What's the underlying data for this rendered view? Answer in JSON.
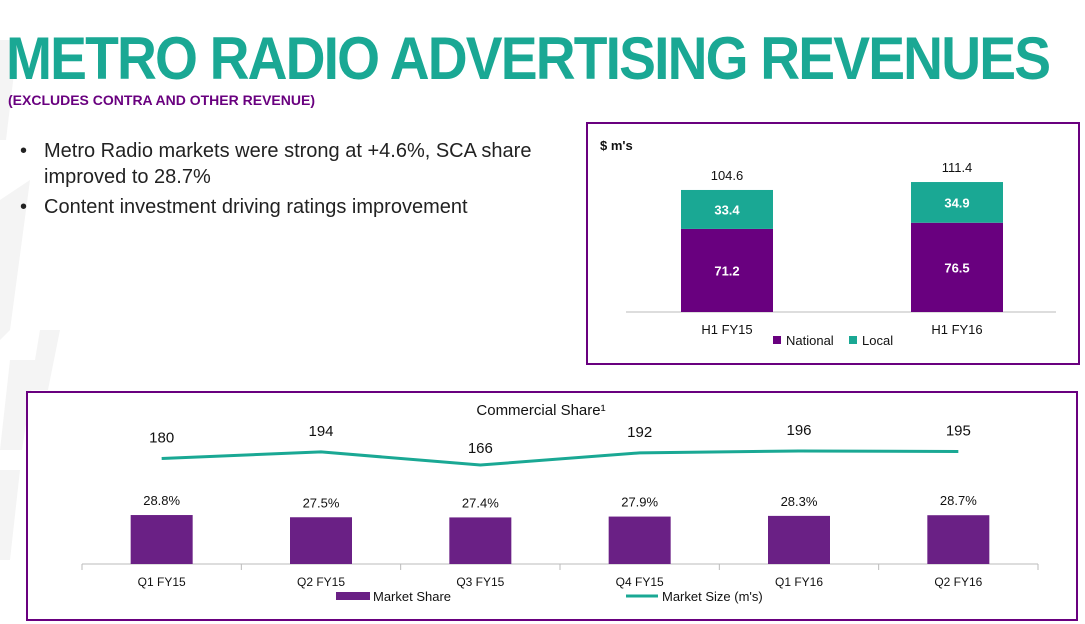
{
  "title": "METRO RADIO ADVERTISING REVENUES",
  "subtitle": "(EXCLUDES CONTRA AND OTHER REVENUE)",
  "bullets": [
    "Metro Radio markets were strong at +4.6%, SCA share improved to 28.7%",
    "Content investment driving ratings improvement"
  ],
  "colors": {
    "teal": "#1aa894",
    "purple": "#69007f",
    "national": "#69007f",
    "local": "#1aa894",
    "market_share": "#6a2085",
    "market_size": "#1aa894"
  },
  "chart_data": [
    {
      "type": "bar",
      "stacked": true,
      "unit_label": "$ m's",
      "categories": [
        "H1 FY15",
        "H1 FY16"
      ],
      "series": [
        {
          "name": "National",
          "values": [
            71.2,
            76.5
          ]
        },
        {
          "name": "Local",
          "values": [
            33.4,
            34.9
          ]
        }
      ],
      "totals": [
        104.6,
        111.4
      ],
      "total_labels": [
        "104.6",
        "111.4"
      ],
      "value_labels": {
        "National": [
          "71.2",
          "76.5"
        ],
        "Local": [
          "33.4",
          "34.9"
        ]
      },
      "ylim": [
        0,
        120
      ],
      "legend": "bottom-center",
      "grid": false
    },
    {
      "type": "bar+line",
      "title": "Commercial Share¹",
      "categories": [
        "Q1 FY15",
        "Q2 FY15",
        "Q3 FY15",
        "Q4 FY15",
        "Q1 FY16",
        "Q2 FY16"
      ],
      "series": [
        {
          "name": "Market Share",
          "type": "bar",
          "values": [
            28.8,
            27.5,
            27.4,
            27.9,
            28.3,
            28.7
          ],
          "labels": [
            "28.8%",
            "27.5%",
            "27.4%",
            "27.9%",
            "28.3%",
            "28.7%"
          ]
        },
        {
          "name": "Market Size (m's)",
          "type": "line",
          "values": [
            180,
            194,
            166,
            192,
            196,
            195
          ],
          "labels": [
            "180",
            "194",
            "166",
            "192",
            "196",
            "195"
          ]
        }
      ],
      "legend": "bottom-center",
      "grid": false
    }
  ]
}
